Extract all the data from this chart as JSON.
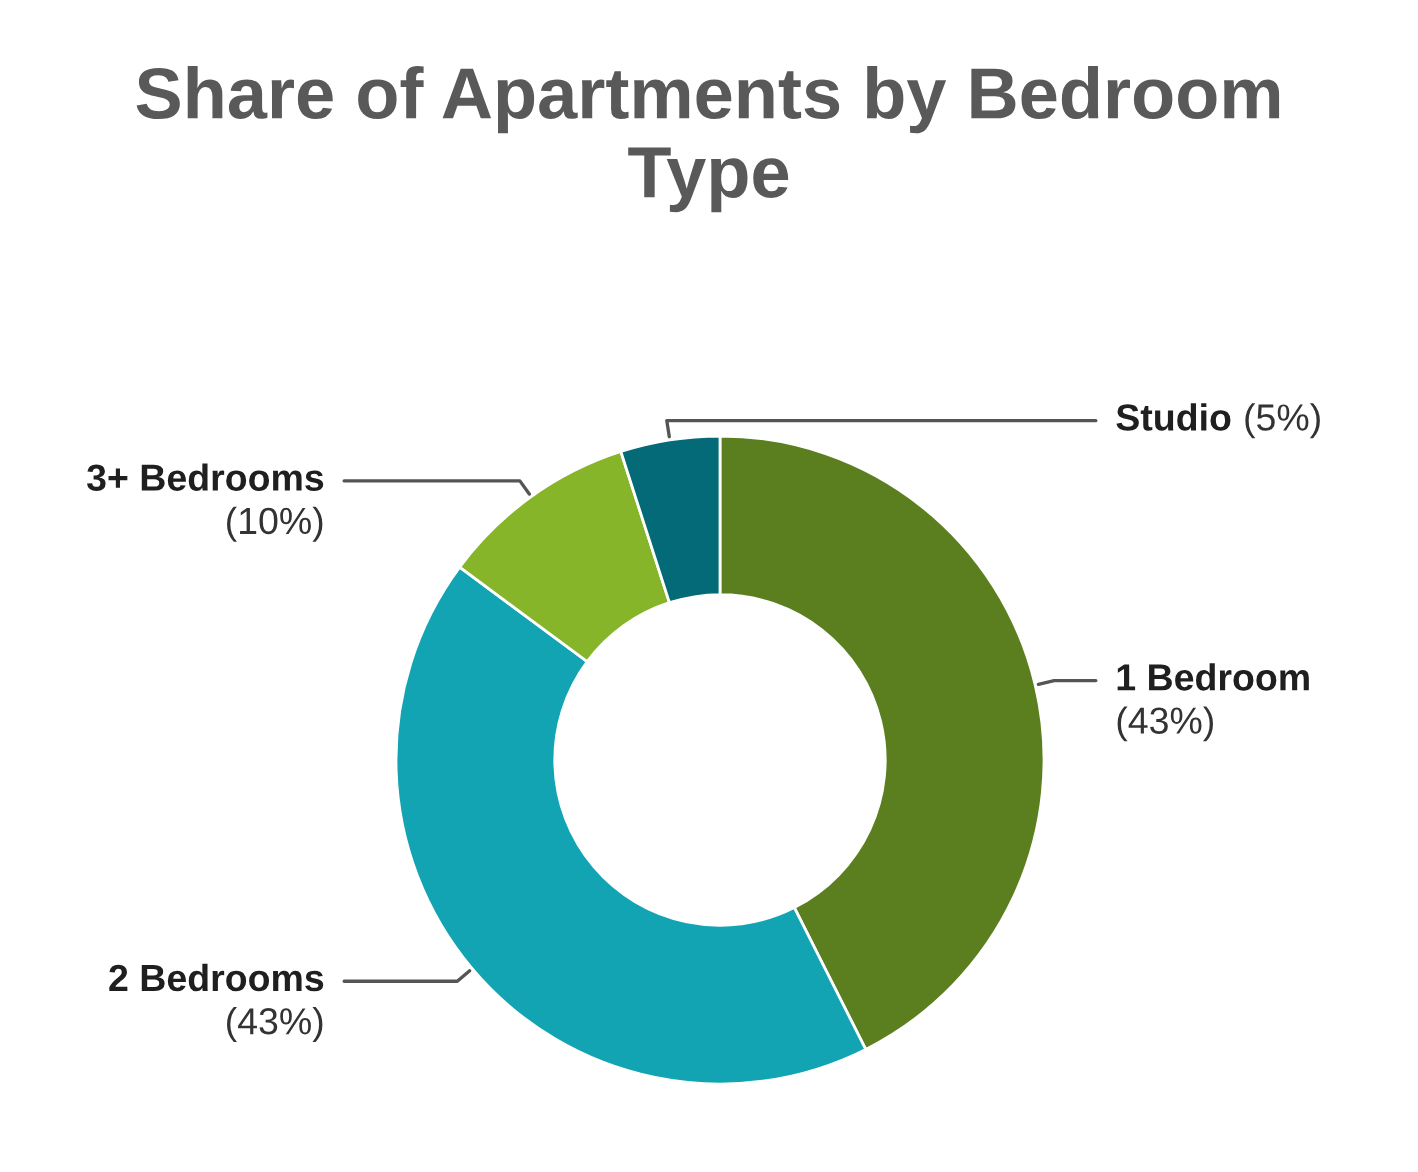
{
  "chart_data": {
    "type": "donut",
    "title": "Share of Apartments by Bedroom Type",
    "categories": [
      "1 Bedroom",
      "2 Bedrooms",
      "3+ Bedrooms",
      "Studio"
    ],
    "values": [
      43,
      43,
      10,
      5
    ],
    "colors": [
      "#5b7f1f",
      "#13a4b4",
      "#86b52a",
      "#046a77"
    ],
    "value_labels": [
      "(43%)",
      "(43%)",
      "(10%)",
      "(5%)"
    ]
  }
}
